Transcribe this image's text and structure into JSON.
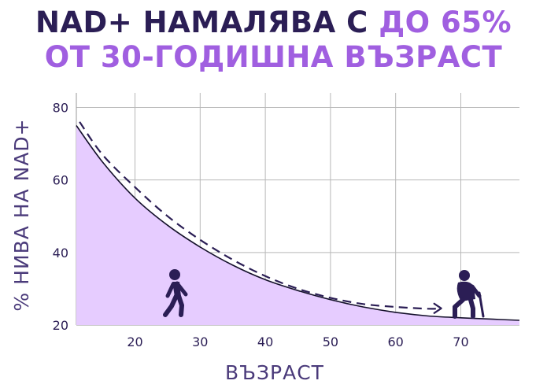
{
  "title": {
    "line1_dark": "NAD+ НАМАЛЯВА С ",
    "line1_accent": "ДО 65%",
    "line2_accent": "ОТ 30-ГОДИШНА ВЪЗРАСТ"
  },
  "colors": {
    "dark": "#2b1e55",
    "accent": "#a05fe0",
    "fill": "#e6ccff",
    "grid": "#b8b8b8"
  },
  "icons": [
    "walking-person-icon",
    "elderly-person-with-cane-icon"
  ],
  "chart_data": {
    "type": "area",
    "xlabel": "ВЪЗРАСТ",
    "ylabel": "% НИВА НА NAD+",
    "xlim": [
      11,
      79
    ],
    "ylim": [
      20,
      84
    ],
    "x_ticks": [
      20,
      30,
      40,
      50,
      60,
      70
    ],
    "y_ticks": [
      20,
      40,
      60,
      80
    ],
    "grid": true,
    "series": [
      {
        "style": "filled-area-solid-line",
        "x": [
          11,
          15,
          20,
          25,
          30,
          35,
          40,
          45,
          50,
          55,
          60,
          65,
          70,
          75,
          79
        ],
        "y": [
          75,
          65,
          55,
          47.5,
          41.5,
          36.5,
          32.5,
          29.5,
          27,
          25,
          23.5,
          22.5,
          22,
          21.6,
          21.3
        ]
      },
      {
        "style": "dashed-arrow",
        "x": [
          11.5,
          15,
          20,
          25,
          30,
          35,
          40,
          45,
          50,
          55,
          60,
          65,
          67
        ],
        "y": [
          76,
          67,
          58,
          50,
          43.5,
          38,
          33.5,
          30,
          27.5,
          25.8,
          25,
          24.5,
          24.6
        ]
      }
    ]
  }
}
